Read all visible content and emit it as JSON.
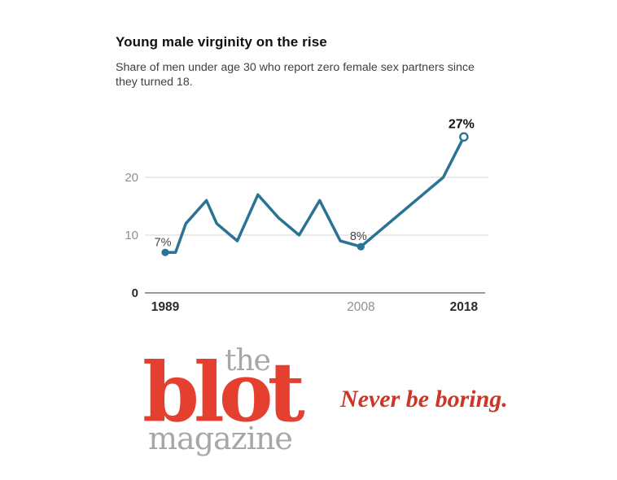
{
  "chart": {
    "title": "Young male virginity on the rise",
    "subtitle_line1": "Share of men under age 30 who report zero female sex partners since",
    "subtitle_line2": "they turned 18."
  },
  "chart_data": {
    "type": "line",
    "title": "Young male virginity on the rise",
    "subtitle": "Share of men under age 30 who report zero female sex partners since they turned 18.",
    "x": [
      1989,
      1990,
      1991,
      1993,
      1994,
      1996,
      1998,
      2000,
      2002,
      2004,
      2006,
      2008,
      2016,
      2018
    ],
    "values": [
      7,
      7,
      12,
      16,
      12,
      9,
      17,
      13,
      10,
      16,
      9,
      8,
      20,
      27
    ],
    "unit": "%",
    "xlabel": "",
    "ylabel": "",
    "ylim": [
      0,
      30
    ],
    "xlim": [
      1989,
      2018
    ],
    "yticks": [
      0,
      10,
      20
    ],
    "xticks": [
      1989,
      2008,
      2018
    ],
    "emphasized_yticks": [
      0
    ],
    "emphasized_xticks": [
      1989,
      2018
    ],
    "grid": true,
    "legend": "none",
    "line_color": "#2a7394",
    "grid_color": "#dddddd",
    "axis_color": "#8a8a8a",
    "tick_gray": "#909090",
    "tick_dark": "#2b2b2b",
    "point_labels": [
      {
        "x": 1989,
        "value": 7,
        "label": "7%",
        "marker": "filled",
        "bold": false
      },
      {
        "x": 2008,
        "value": 8,
        "label": "8%",
        "marker": "filled",
        "bold": false
      },
      {
        "x": 2018,
        "value": 27,
        "label": "27%",
        "marker": "open",
        "bold": true
      }
    ]
  },
  "branding": {
    "the": "the",
    "blot": "blot",
    "magazine": "magazine",
    "tagline": "Never be boring.",
    "logo_red": "#e5402f",
    "logo_gray": "#a5a7aa",
    "tagline_red": "#ce3526"
  }
}
